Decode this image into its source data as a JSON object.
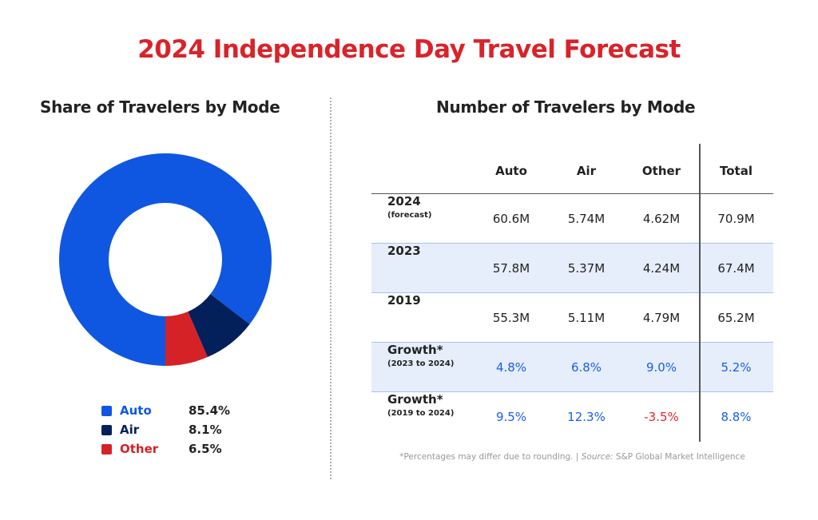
{
  "title": "2024 Independence Day Travel Forecast",
  "colors": {
    "auto": "#0f57e0",
    "air": "#04205a",
    "other": "#d42227",
    "growth_pos": "#1a5ee8",
    "growth_neg": "#e0262d"
  },
  "chart_data": [
    {
      "type": "pie",
      "variant": "donut",
      "title": "Share of Travelers by Mode",
      "start": "bottom",
      "direction": "clockwise",
      "slices": [
        {
          "label": "Auto",
          "value": 85.4,
          "display": "85.4%",
          "color": "#0f57e0"
        },
        {
          "label": "Air",
          "value": 8.1,
          "display": "8.1%",
          "color": "#04205a"
        },
        {
          "label": "Other",
          "value": 6.5,
          "display": "6.5%",
          "color": "#d42227"
        }
      ],
      "legend": "bottom"
    },
    {
      "type": "table",
      "title": "Number of Travelers by Mode",
      "columns": [
        "",
        "Auto",
        "Air",
        "Other",
        "Total"
      ],
      "rows": [
        {
          "label": "2024",
          "sublabel": "(forecast)",
          "values": [
            "60.6M",
            "5.74M",
            "4.62M",
            "70.9M"
          ],
          "shaded": false
        },
        {
          "label": "2023",
          "sublabel": "",
          "values": [
            "57.8M",
            "5.37M",
            "4.24M",
            "67.4M"
          ],
          "shaded": true
        },
        {
          "label": "2019",
          "sublabel": "",
          "values": [
            "55.3M",
            "5.11M",
            "4.79M",
            "65.2M"
          ],
          "shaded": false
        },
        {
          "label": "Growth*",
          "sublabel": "(2023 to 2024)",
          "values": [
            "4.8%",
            "6.8%",
            "9.0%",
            "5.2%"
          ],
          "shaded": true
        },
        {
          "label": "Growth*",
          "sublabel": "(2019 to 2024)",
          "values": [
            "9.5%",
            "12.3%",
            "-3.5%",
            "8.8%"
          ],
          "shaded": false
        }
      ],
      "footnote": "*Percentages may differ due to rounding. | ",
      "source_label": "Source:",
      "source": " S&P Global Market Intelligence"
    }
  ]
}
